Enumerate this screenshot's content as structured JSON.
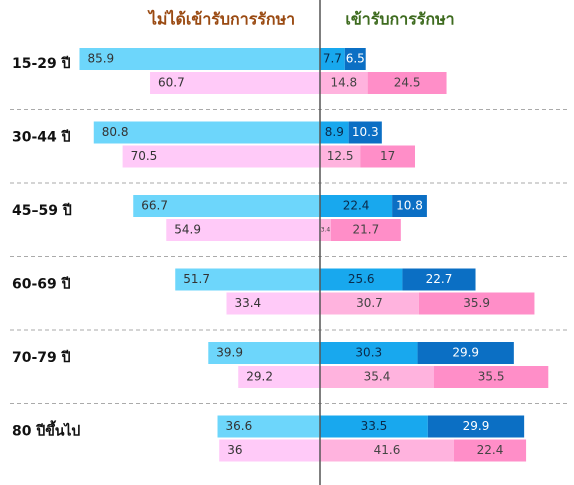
{
  "chart_data": {
    "type": "diverging-bar",
    "left_header": "ไม่ได้เข้ารับการรักษา",
    "right_header": "เข้ารับการรักษา",
    "categories": [
      "15-29 ปี",
      "30-44 ปี",
      "45–59 ปี",
      "60-69 ปี",
      "70-79 ปี",
      "80 ปีขึ้นไป"
    ],
    "left_series": [
      {
        "color": "#6dd6fb",
        "values": [
          85.9,
          80.8,
          66.7,
          51.7,
          39.9,
          36.6
        ]
      },
      {
        "color": "#ffcaf8",
        "values": [
          60.7,
          70.5,
          54.9,
          33.4,
          29.2,
          36
        ]
      }
    ],
    "right_series": [
      {
        "color": "#18a8ee",
        "values": [
          7.7,
          8.9,
          22.4,
          25.6,
          30.3,
          33.5
        ],
        "row": 0
      },
      {
        "color": "#0b6fc4",
        "values": [
          6.5,
          10.3,
          10.8,
          22.7,
          29.9,
          29.9
        ],
        "row": 0
      },
      {
        "color": "#ffb3de",
        "values": [
          14.8,
          12.5,
          3.4,
          30.7,
          35.4,
          41.6
        ],
        "row": 1
      },
      {
        "color": "#ff8ec8",
        "values": [
          24.5,
          17,
          21.7,
          35.9,
          35.5,
          22.4
        ],
        "row": 1
      }
    ]
  }
}
